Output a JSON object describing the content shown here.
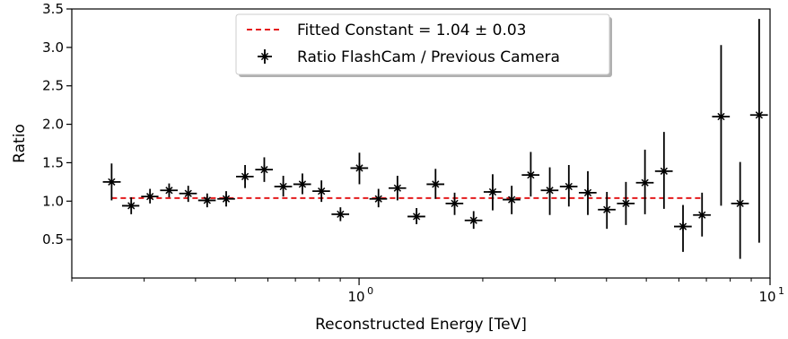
{
  "chart_data": {
    "type": "scatter",
    "xscale": "log",
    "xlabel": "Reconstructed Energy [TeV]",
    "ylabel": "Ratio",
    "xlim": [
      0.2,
      10
    ],
    "ylim": [
      0.0,
      3.5
    ],
    "x_major_ticks": [
      {
        "value": 1,
        "label_base": "10",
        "label_exp": "0"
      },
      {
        "value": 10,
        "label_base": "10",
        "label_exp": "1"
      }
    ],
    "y_ticks": [
      {
        "value": 0.5,
        "label": "0.5"
      },
      {
        "value": 1.0,
        "label": "1.0"
      },
      {
        "value": 1.5,
        "label": "1.5"
      },
      {
        "value": 2.0,
        "label": "2.0"
      },
      {
        "value": 2.5,
        "label": "2.5"
      },
      {
        "value": 3.0,
        "label": "3.0"
      },
      {
        "value": 3.5,
        "label": "3.5"
      }
    ],
    "fit": {
      "label": "Fitted Constant = 1.04 ± 0.03",
      "value": 1.04,
      "x_range": [
        0.25,
        6.85
      ],
      "color": "#e41a1c"
    },
    "series": [
      {
        "name": "Ratio FlashCam / Previous Camera",
        "color": "#000000",
        "points": [
          {
            "x": 0.25,
            "xlo": 0.238,
            "xhi": 0.263,
            "y": 1.25,
            "ylo": 1.01,
            "yhi": 1.49
          },
          {
            "x": 0.279,
            "xlo": 0.265,
            "xhi": 0.292,
            "y": 0.94,
            "ylo": 0.83,
            "yhi": 1.05
          },
          {
            "x": 0.31,
            "xlo": 0.295,
            "xhi": 0.325,
            "y": 1.06,
            "ylo": 0.97,
            "yhi": 1.16
          },
          {
            "x": 0.345,
            "xlo": 0.328,
            "xhi": 0.362,
            "y": 1.14,
            "ylo": 1.05,
            "yhi": 1.23
          },
          {
            "x": 0.384,
            "xlo": 0.365,
            "xhi": 0.403,
            "y": 1.1,
            "ylo": 0.99,
            "yhi": 1.2
          },
          {
            "x": 0.427,
            "xlo": 0.406,
            "xhi": 0.448,
            "y": 1.01,
            "ylo": 0.92,
            "yhi": 1.1
          },
          {
            "x": 0.475,
            "xlo": 0.452,
            "xhi": 0.499,
            "y": 1.03,
            "ylo": 0.93,
            "yhi": 1.13
          },
          {
            "x": 0.528,
            "xlo": 0.502,
            "xhi": 0.554,
            "y": 1.32,
            "ylo": 1.17,
            "yhi": 1.47
          },
          {
            "x": 0.588,
            "xlo": 0.559,
            "xhi": 0.617,
            "y": 1.41,
            "ylo": 1.25,
            "yhi": 1.57
          },
          {
            "x": 0.654,
            "xlo": 0.622,
            "xhi": 0.687,
            "y": 1.19,
            "ylo": 1.06,
            "yhi": 1.33
          },
          {
            "x": 0.728,
            "xlo": 0.692,
            "xhi": 0.764,
            "y": 1.22,
            "ylo": 1.09,
            "yhi": 1.36
          },
          {
            "x": 0.81,
            "xlo": 0.77,
            "xhi": 0.85,
            "y": 1.13,
            "ylo": 0.99,
            "yhi": 1.27
          },
          {
            "x": 0.901,
            "xlo": 0.857,
            "xhi": 0.946,
            "y": 0.83,
            "ylo": 0.74,
            "yhi": 0.92
          },
          {
            "x": 1.002,
            "xlo": 0.953,
            "xhi": 1.052,
            "y": 1.43,
            "ylo": 1.22,
            "yhi": 1.63
          },
          {
            "x": 1.115,
            "xlo": 1.06,
            "xhi": 1.17,
            "y": 1.03,
            "ylo": 0.92,
            "yhi": 1.16
          },
          {
            "x": 1.24,
            "xlo": 1.18,
            "xhi": 1.302,
            "y": 1.17,
            "ylo": 1.01,
            "yhi": 1.33
          },
          {
            "x": 1.38,
            "xlo": 1.312,
            "xhi": 1.449,
            "y": 0.8,
            "ylo": 0.7,
            "yhi": 0.91
          },
          {
            "x": 1.535,
            "xlo": 1.46,
            "xhi": 1.612,
            "y": 1.22,
            "ylo": 1.03,
            "yhi": 1.42
          },
          {
            "x": 1.708,
            "xlo": 1.624,
            "xhi": 1.793,
            "y": 0.97,
            "ylo": 0.82,
            "yhi": 1.11
          },
          {
            "x": 1.9,
            "xlo": 1.807,
            "xhi": 1.995,
            "y": 0.75,
            "ylo": 0.64,
            "yhi": 0.87
          },
          {
            "x": 2.114,
            "xlo": 2.01,
            "xhi": 2.219,
            "y": 1.12,
            "ylo": 0.88,
            "yhi": 1.35
          },
          {
            "x": 2.352,
            "xlo": 2.236,
            "xhi": 2.469,
            "y": 1.02,
            "ylo": 0.83,
            "yhi": 1.2
          },
          {
            "x": 2.617,
            "xlo": 2.488,
            "xhi": 2.747,
            "y": 1.34,
            "ylo": 1.06,
            "yhi": 1.64
          },
          {
            "x": 2.911,
            "xlo": 2.768,
            "xhi": 3.056,
            "y": 1.14,
            "ylo": 0.82,
            "yhi": 1.44
          },
          {
            "x": 3.239,
            "xlo": 3.08,
            "xhi": 3.4,
            "y": 1.19,
            "ylo": 0.93,
            "yhi": 1.47
          },
          {
            "x": 3.603,
            "xlo": 3.426,
            "xhi": 3.783,
            "y": 1.11,
            "ylo": 0.82,
            "yhi": 1.39
          },
          {
            "x": 4.009,
            "xlo": 3.812,
            "xhi": 4.209,
            "y": 0.89,
            "ylo": 0.64,
            "yhi": 1.12
          },
          {
            "x": 4.46,
            "xlo": 4.241,
            "xhi": 4.683,
            "y": 0.97,
            "ylo": 0.69,
            "yhi": 1.25
          },
          {
            "x": 4.962,
            "xlo": 4.718,
            "xhi": 5.21,
            "y": 1.24,
            "ylo": 0.83,
            "yhi": 1.67
          },
          {
            "x": 5.52,
            "xlo": 5.249,
            "xhi": 5.796,
            "y": 1.39,
            "ylo": 0.9,
            "yhi": 1.9
          },
          {
            "x": 6.141,
            "xlo": 5.839,
            "xhi": 6.448,
            "y": 0.67,
            "ylo": 0.34,
            "yhi": 0.95
          },
          {
            "x": 6.832,
            "xlo": 6.496,
            "xhi": 7.173,
            "y": 0.82,
            "ylo": 0.54,
            "yhi": 1.11
          },
          {
            "x": 7.601,
            "xlo": 7.227,
            "xhi": 7.981,
            "y": 2.1,
            "ylo": 0.94,
            "yhi": 3.03
          },
          {
            "x": 8.457,
            "xlo": 8.04,
            "xhi": 8.879,
            "y": 0.97,
            "ylo": 0.25,
            "yhi": 1.51
          },
          {
            "x": 9.408,
            "xlo": 8.945,
            "xhi": 9.879,
            "y": 2.12,
            "ylo": 0.46,
            "yhi": 3.37
          }
        ]
      }
    ],
    "legend_position": "upper-center",
    "grid": false
  }
}
